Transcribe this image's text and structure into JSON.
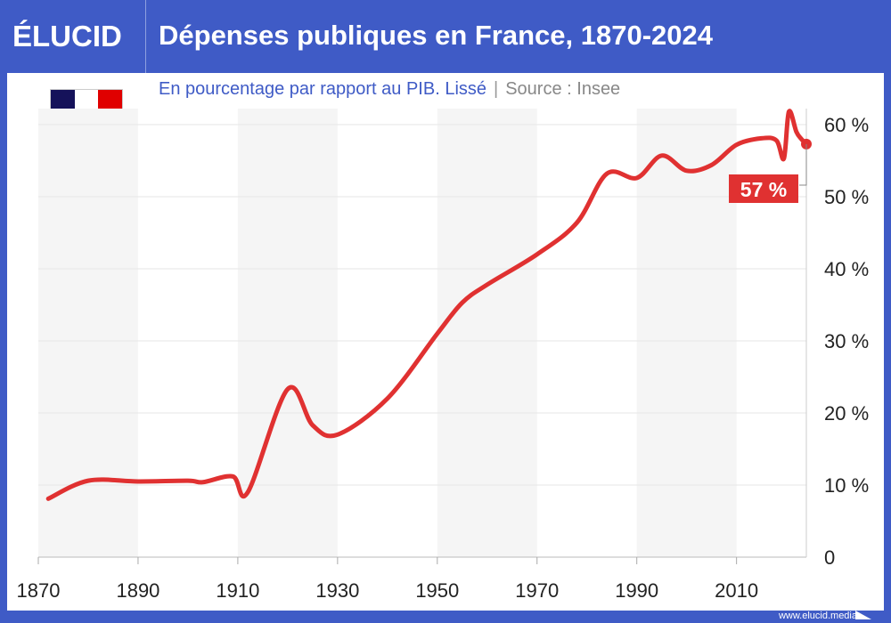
{
  "header": {
    "logo": "ÉLUCID",
    "title": "Dépenses publiques en France, 1870-2024"
  },
  "subtitle": {
    "text": "En pourcentage par rapport au PIB. Lissé",
    "separator": "|",
    "source": "Source : Insee"
  },
  "flag": {
    "icon": "france-flag-icon",
    "colors": [
      "#15125a",
      "#ffffff",
      "#e00000"
    ]
  },
  "footer": {
    "url": "www.elucid.media"
  },
  "colors": {
    "line": "#e03131",
    "frame": "#3f5bc6",
    "band": "#f5f5f5"
  },
  "chart_data": {
    "type": "line",
    "title": "Dépenses publiques en France, 1870-2024",
    "xlabel": "",
    "ylabel": "",
    "xlim": [
      1870,
      2024
    ],
    "ylim": [
      0,
      60
    ],
    "xticks": [
      "1870",
      "1890",
      "1910",
      "1930",
      "1950",
      "1970",
      "1990",
      "2010"
    ],
    "yticks": [
      "0",
      "10 %",
      "20 %",
      "30 %",
      "40 %",
      "50 %",
      "60 %"
    ],
    "grid": true,
    "y_axis_position": "right",
    "series": [
      {
        "x": [
          1872,
          1880,
          1890,
          1900,
          1903,
          1909,
          1912,
          1920,
          1925,
          1930,
          1940,
          1950,
          1955,
          1960,
          1970,
          1978,
          1984,
          1990,
          1995,
          2000,
          2005,
          2010,
          2015,
          2018,
          2019.5,
          2020.5,
          2022,
          2023,
          2024
        ],
        "y": [
          8.1,
          10.6,
          10.5,
          10.6,
          10.4,
          11.2,
          9.0,
          23.3,
          18.3,
          17.0,
          22.0,
          31.0,
          35.3,
          37.8,
          42.0,
          46.4,
          53.2,
          52.6,
          55.7,
          53.6,
          54.4,
          57.2,
          58.1,
          57.8,
          55.3,
          61.8,
          59.0,
          58.0,
          57.3
        ]
      }
    ],
    "annotation": {
      "label": "57 %",
      "x": 2024,
      "y": 57.3
    }
  }
}
